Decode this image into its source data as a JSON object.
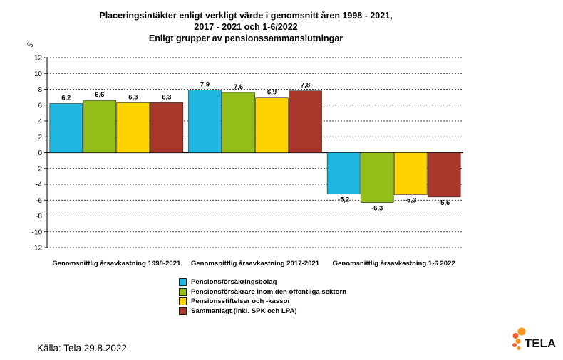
{
  "chart_data": {
    "type": "bar",
    "title": [
      "Placeringsintäkter enligt verkligt värde i genomsnitt åren 1998 - 2021,",
      "2017 - 2021 och 1-6/2022",
      "Enligt grupper av pensionssammanslutningar"
    ],
    "ylabel": "%",
    "ylim": [
      -12,
      12
    ],
    "yticks": [
      "12",
      "10",
      "8",
      "6",
      "4",
      "2",
      "0",
      "-2",
      "-4",
      "-6",
      "-8",
      "-10",
      "-12"
    ],
    "grid": true,
    "categories": [
      "Genomsnittlig årsavkastning 1998-2021",
      "Genomsnittlig årsavkastning 2017-2021",
      "Genomsnittlig årsavkastning 1-6 2022"
    ],
    "series": [
      {
        "name": "Pensionsförsäkringsbolag",
        "color": "#1FB6E0",
        "values": [
          6.2,
          7.9,
          -5.2
        ],
        "labels": [
          "6,2",
          "7,9",
          "-5,2"
        ]
      },
      {
        "name": "Pensionsförsäkrare inom den offentliga sektorn",
        "color": "#93BE1A",
        "values": [
          6.6,
          7.6,
          -6.3
        ],
        "labels": [
          "6,6",
          "7,6",
          "-6,3"
        ]
      },
      {
        "name": "Pensionsstiftelser och -kassor",
        "color": "#FFD200",
        "values": [
          6.3,
          6.9,
          -5.3
        ],
        "labels": [
          "6,3",
          "6,9",
          "-5,3"
        ]
      },
      {
        "name": "Sammanlagt (inkl. SPK och LPA)",
        "color": "#A6372A",
        "values": [
          6.3,
          7.8,
          -5.6
        ],
        "labels": [
          "6,3",
          "7,8",
          "-5,6"
        ]
      }
    ],
    "legend_position": "bottom"
  },
  "source": "Källa: Tela 29.8.2022",
  "logo": {
    "text": "TELA",
    "colors": [
      "#F7941D",
      "#F15A29"
    ]
  }
}
